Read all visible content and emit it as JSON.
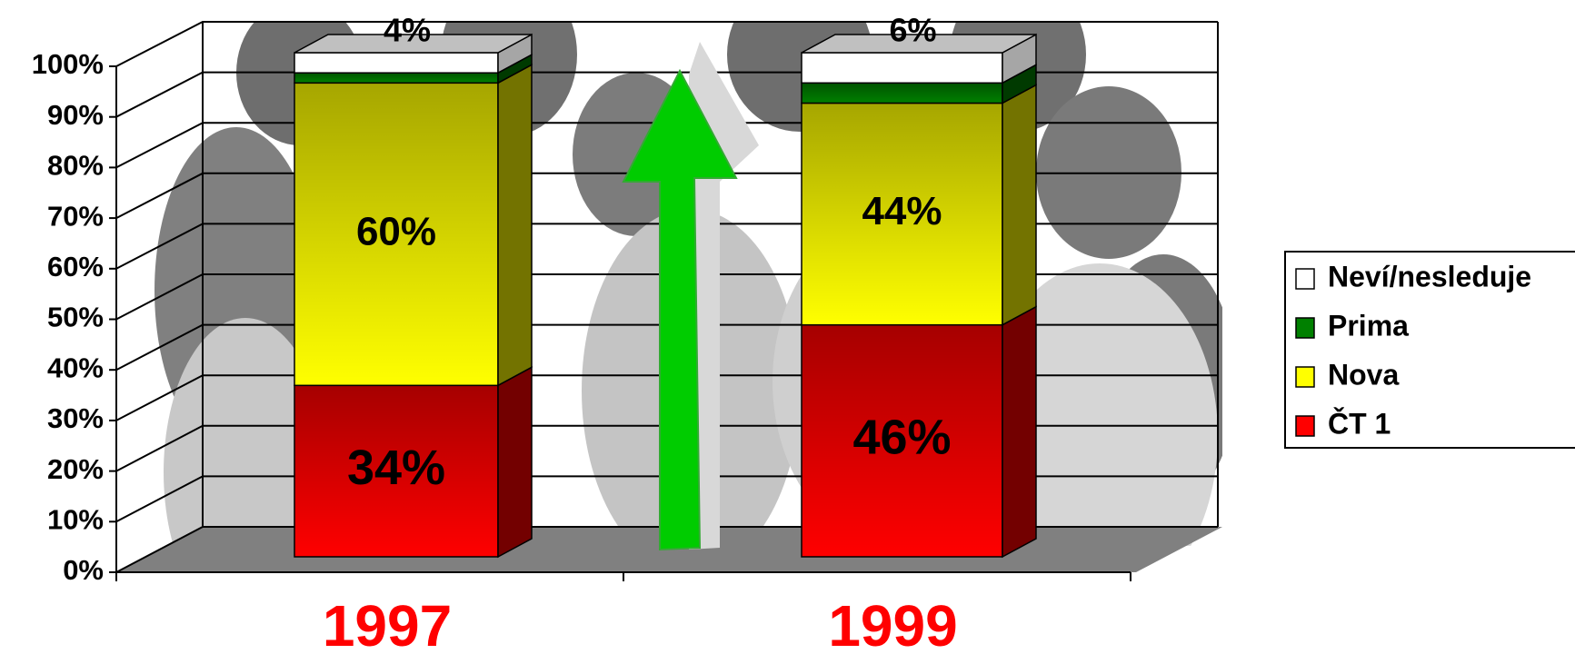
{
  "chart_data": {
    "type": "bar3d-stacked",
    "categories": [
      "1997",
      "1999"
    ],
    "series": [
      {
        "name": "ČT 1",
        "color": "#ff0000",
        "values": [
          34,
          46
        ],
        "value_labels": [
          "34%",
          "46%"
        ]
      },
      {
        "name": "Nova",
        "color": "#ffff00",
        "values": [
          60,
          44
        ],
        "value_labels": [
          "60%",
          "44%"
        ]
      },
      {
        "name": "Prima",
        "color": "#008000",
        "values": [
          2,
          4
        ],
        "value_labels": [
          null,
          null
        ]
      },
      {
        "name": "Neví/nesleduje",
        "color": "#ffffff",
        "values": [
          4,
          6
        ],
        "value_labels": [
          "4%",
          "6%"
        ]
      }
    ],
    "ylim": [
      0,
      100
    ],
    "yticks": [
      {
        "value": 0,
        "label": "0%"
      },
      {
        "value": 10,
        "label": "10%"
      },
      {
        "value": 20,
        "label": "20%"
      },
      {
        "value": 30,
        "label": "30%"
      },
      {
        "value": 40,
        "label": "40%"
      },
      {
        "value": 50,
        "label": "50%"
      },
      {
        "value": 60,
        "label": "60%"
      },
      {
        "value": 70,
        "label": "70%"
      },
      {
        "value": 80,
        "label": "80%"
      },
      {
        "value": 90,
        "label": "90%"
      },
      {
        "value": 100,
        "label": "100%"
      }
    ],
    "grid": true,
    "legend": "right"
  }
}
